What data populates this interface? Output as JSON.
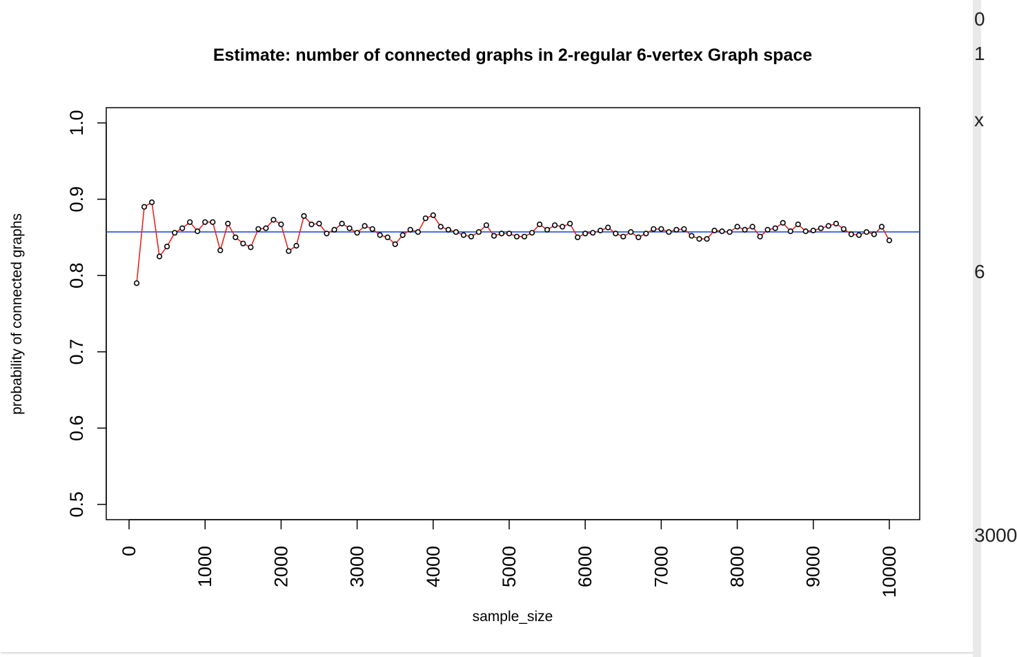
{
  "chart_data": {
    "type": "line",
    "title": "Estimate: number of connected graphs in 2-regular 6-vertex Graph space",
    "xlabel": "sample_size",
    "ylabel": "probability of connected graphs",
    "xlim": [
      -300,
      10400
    ],
    "ylim": [
      0.48,
      1.02
    ],
    "x_ticks": [
      0,
      1000,
      2000,
      3000,
      4000,
      5000,
      6000,
      7000,
      8000,
      9000,
      10000
    ],
    "x_tick_labels": [
      "0",
      "1000",
      "2000",
      "3000",
      "4000",
      "5000",
      "6000",
      "7000",
      "8000",
      "9000",
      "10000"
    ],
    "y_ticks": [
      0.5,
      0.6,
      0.7,
      0.8,
      0.9,
      1.0
    ],
    "y_tick_labels": [
      "0.5",
      "0.6",
      "0.7",
      "0.8",
      "0.9",
      "1.0"
    ],
    "grid": false,
    "legend": "none",
    "series": [
      {
        "color": "#e8231f",
        "marker": "open-circle",
        "marker_color": "#000000",
        "x": [
          100,
          200,
          300,
          400,
          500,
          600,
          700,
          800,
          900,
          1000,
          1100,
          1200,
          1300,
          1400,
          1500,
          1600,
          1700,
          1800,
          1900,
          2000,
          2100,
          2200,
          2300,
          2400,
          2500,
          2600,
          2700,
          2800,
          2900,
          3000,
          3100,
          3200,
          3300,
          3400,
          3500,
          3600,
          3700,
          3800,
          3900,
          4000,
          4100,
          4200,
          4300,
          4400,
          4500,
          4600,
          4700,
          4800,
          4900,
          5000,
          5100,
          5200,
          5300,
          5400,
          5500,
          5600,
          5700,
          5800,
          5900,
          6000,
          6100,
          6200,
          6300,
          6400,
          6500,
          6600,
          6700,
          6800,
          6900,
          7000,
          7100,
          7200,
          7300,
          7400,
          7500,
          7600,
          7700,
          7800,
          7900,
          8000,
          8100,
          8200,
          8300,
          8400,
          8500,
          8600,
          8700,
          8800,
          8900,
          9000,
          9100,
          9200,
          9300,
          9400,
          9500,
          9600,
          9700,
          9800,
          9900,
          10000
        ],
        "y": [
          0.79,
          0.89,
          0.896,
          0.825,
          0.838,
          0.856,
          0.862,
          0.87,
          0.858,
          0.87,
          0.87,
          0.833,
          0.868,
          0.85,
          0.842,
          0.837,
          0.861,
          0.862,
          0.873,
          0.867,
          0.832,
          0.839,
          0.878,
          0.867,
          0.868,
          0.855,
          0.86,
          0.868,
          0.862,
          0.856,
          0.865,
          0.861,
          0.853,
          0.85,
          0.841,
          0.853,
          0.86,
          0.857,
          0.875,
          0.879,
          0.864,
          0.86,
          0.857,
          0.853,
          0.851,
          0.857,
          0.866,
          0.852,
          0.855,
          0.855,
          0.851,
          0.851,
          0.856,
          0.867,
          0.86,
          0.866,
          0.864,
          0.868,
          0.85,
          0.855,
          0.856,
          0.859,
          0.863,
          0.855,
          0.851,
          0.857,
          0.85,
          0.855,
          0.861,
          0.861,
          0.857,
          0.86,
          0.861,
          0.852,
          0.848,
          0.848,
          0.859,
          0.858,
          0.857,
          0.864,
          0.86,
          0.864,
          0.851,
          0.86,
          0.862,
          0.869,
          0.858,
          0.867,
          0.858,
          0.859,
          0.862,
          0.865,
          0.868,
          0.861,
          0.854,
          0.853,
          0.857,
          0.854,
          0.864,
          0.846
        ]
      }
    ],
    "hlines": [
      {
        "y": 0.8571,
        "color": "#1f4fe0"
      }
    ]
  },
  "right_edge_fragments": [
    "0",
    "1",
    "x",
    "6",
    "3000"
  ]
}
